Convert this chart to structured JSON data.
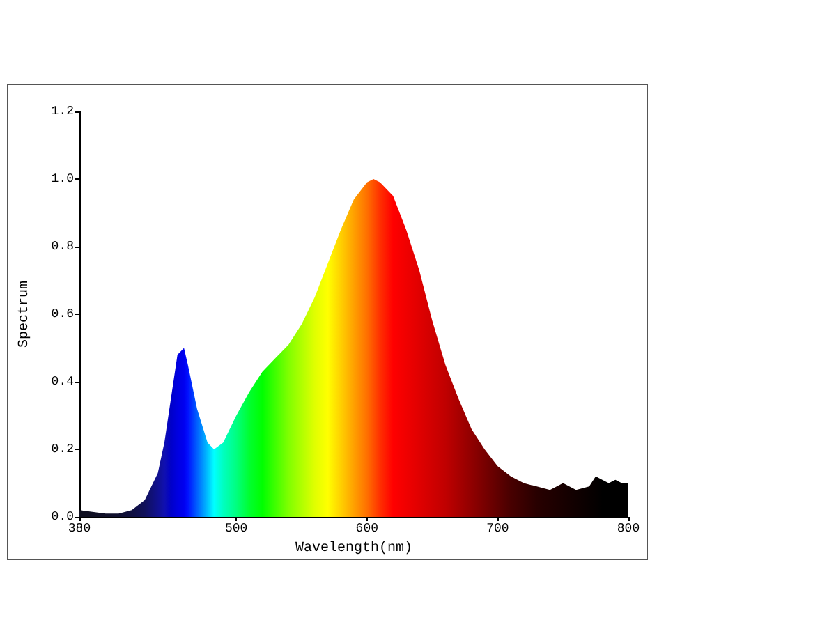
{
  "chart_data": {
    "type": "area",
    "xlabel": "Wavelength(nm)",
    "ylabel": "Spectrum",
    "x": [
      380,
      400,
      410,
      420,
      430,
      440,
      445,
      450,
      455,
      460,
      463,
      470,
      478,
      483,
      490,
      500,
      510,
      520,
      530,
      540,
      550,
      560,
      570,
      580,
      590,
      600,
      605,
      610,
      620,
      630,
      640,
      650,
      660,
      670,
      680,
      690,
      700,
      710,
      720,
      730,
      740,
      750,
      760,
      770,
      775,
      780,
      785,
      790,
      795,
      800
    ],
    "values": [
      0.02,
      0.01,
      0.01,
      0.02,
      0.05,
      0.13,
      0.22,
      0.35,
      0.48,
      0.5,
      0.45,
      0.32,
      0.22,
      0.2,
      0.22,
      0.3,
      0.37,
      0.43,
      0.47,
      0.51,
      0.57,
      0.65,
      0.75,
      0.85,
      0.94,
      0.99,
      1.0,
      0.99,
      0.95,
      0.85,
      0.73,
      0.58,
      0.45,
      0.35,
      0.26,
      0.2,
      0.15,
      0.12,
      0.1,
      0.09,
      0.08,
      0.1,
      0.08,
      0.09,
      0.12,
      0.11,
      0.1,
      0.11,
      0.1,
      0.1
    ],
    "colors": [
      "#101020",
      "#101028",
      "#101030",
      "#101040",
      "#10105a",
      "#101090",
      "#1010b0",
      "#0000c8",
      "#0000e0",
      "#0000f0",
      "#0010ff",
      "#0060ff",
      "#00c0ff",
      "#00ffff",
      "#00ffc0",
      "#00ff80",
      "#00ff30",
      "#00ff00",
      "#40ff00",
      "#80ff00",
      "#b0ff00",
      "#e0ff00",
      "#ffff00",
      "#ffd000",
      "#ffa000",
      "#ff7000",
      "#ff5000",
      "#ff3000",
      "#ff0000",
      "#f00000",
      "#e00000",
      "#d00000",
      "#c00000",
      "#a80000",
      "#900000",
      "#780000",
      "#600000",
      "#480000",
      "#380000",
      "#280000",
      "#200000",
      "#180000",
      "#100000",
      "#080000",
      "#050000",
      "#000000",
      "#000000",
      "#000000",
      "#000000",
      "#000000"
    ],
    "xlim": [
      380,
      800
    ],
    "xticks": [
      380,
      500,
      600,
      700,
      800
    ],
    "ylim": [
      0,
      1.2
    ],
    "yticks": [
      {
        "value": 0,
        "label": "0.0"
      },
      {
        "value": 0.2,
        "label": "0.2"
      },
      {
        "value": 0.4,
        "label": "0.4"
      },
      {
        "value": 0.6,
        "label": "0.6"
      },
      {
        "value": 0.8,
        "label": "0.8"
      },
      {
        "value": 1.0,
        "label": "1.0"
      },
      {
        "value": 1.2,
        "label": "1.2"
      }
    ],
    "grid": false
  }
}
